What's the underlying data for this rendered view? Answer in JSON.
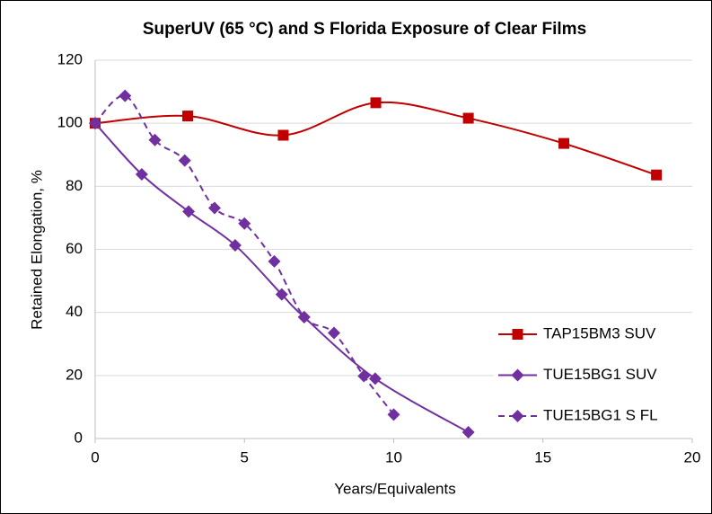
{
  "chart_data": {
    "type": "line",
    "title": "SuperUV (65 °C) and S Florida Exposure of Clear Films",
    "x_label": "Years/Equivalents",
    "y_label": "Retained Elongation, %",
    "xlim": [
      0,
      20
    ],
    "xticks": [
      0,
      5,
      10,
      15,
      20
    ],
    "ylim": [
      0,
      120
    ],
    "yticks": [
      0,
      20,
      40,
      60,
      80,
      100,
      120
    ],
    "grid": true,
    "smooth": true,
    "legend": "right",
    "series": [
      {
        "name": "TAP15BM3 SUV",
        "color": "#c00000",
        "marker": "square",
        "dashed": false,
        "x": [
          0,
          3.1,
          6.3,
          9.4,
          12.5,
          15.7,
          18.8
        ],
        "values": [
          100,
          102.3,
          96.2,
          106.5,
          101.6,
          93.6,
          83.6
        ]
      },
      {
        "name": "TUE15BG1 SUV",
        "color": "#7030a0",
        "marker": "diamond",
        "dashed": false,
        "x": [
          0,
          1.56,
          3.13,
          4.69,
          6.25,
          7.0,
          9.38,
          12.5
        ],
        "values": [
          100,
          83.8,
          72,
          61.3,
          45.7,
          38.5,
          19,
          2
        ]
      },
      {
        "name": "TUE15BG1 S FL",
        "color": "#7030a0",
        "marker": "diamond",
        "dashed": true,
        "x": [
          0,
          1,
          2,
          3,
          4,
          5,
          6,
          7,
          8,
          9,
          10
        ],
        "values": [
          100,
          108.7,
          94.7,
          88.2,
          73.1,
          68.2,
          56.2,
          38.5,
          33.5,
          19.8,
          7.6
        ]
      }
    ]
  }
}
